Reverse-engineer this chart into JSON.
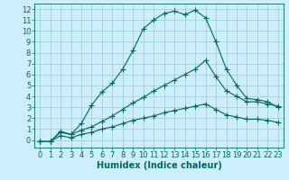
{
  "xlabel": "Humidex (Indice chaleur)",
  "background_color": "#cceeff",
  "line_color": "#006666",
  "grid_color": "#99cccc",
  "xlim": [
    -0.5,
    23.5
  ],
  "ylim": [
    -0.7,
    12.5
  ],
  "xticks": [
    0,
    1,
    2,
    3,
    4,
    5,
    6,
    7,
    8,
    9,
    10,
    11,
    12,
    13,
    14,
    15,
    16,
    17,
    18,
    19,
    20,
    21,
    22,
    23
  ],
  "yticks": [
    0,
    1,
    2,
    3,
    4,
    5,
    6,
    7,
    8,
    9,
    10,
    11,
    12
  ],
  "line1_x": [
    0,
    1,
    2,
    3,
    4,
    5,
    6,
    7,
    8,
    9,
    10,
    11,
    12,
    13,
    14,
    15,
    16,
    17,
    18,
    19,
    20,
    21,
    22,
    23
  ],
  "line1_y": [
    -0.15,
    -0.15,
    0.8,
    0.5,
    1.5,
    3.2,
    4.4,
    5.2,
    6.5,
    8.2,
    10.2,
    11.0,
    11.6,
    11.8,
    11.5,
    11.9,
    11.2,
    9.0,
    6.5,
    5.0,
    3.8,
    3.7,
    3.5,
    3.0
  ],
  "line2_x": [
    0,
    1,
    2,
    3,
    4,
    5,
    6,
    7,
    8,
    9,
    10,
    11,
    12,
    13,
    14,
    15,
    16,
    17,
    18,
    19,
    20,
    21,
    22,
    23
  ],
  "line2_y": [
    -0.15,
    -0.15,
    0.7,
    0.5,
    0.9,
    1.2,
    1.7,
    2.2,
    2.8,
    3.4,
    3.9,
    4.5,
    5.0,
    5.5,
    6.0,
    6.5,
    7.3,
    5.8,
    4.5,
    4.0,
    3.5,
    3.5,
    3.3,
    3.1
  ],
  "line3_x": [
    0,
    1,
    2,
    3,
    4,
    5,
    6,
    7,
    8,
    9,
    10,
    11,
    12,
    13,
    14,
    15,
    16,
    17,
    18,
    19,
    20,
    21,
    22,
    23
  ],
  "line3_y": [
    -0.15,
    -0.15,
    0.4,
    0.2,
    0.5,
    0.7,
    1.0,
    1.2,
    1.5,
    1.8,
    2.0,
    2.2,
    2.5,
    2.7,
    2.9,
    3.1,
    3.3,
    2.8,
    2.3,
    2.1,
    1.9,
    1.9,
    1.8,
    1.6
  ],
  "markersize": 2.0,
  "linewidth": 0.8,
  "font_size": 6,
  "xlabel_fontsize": 7
}
